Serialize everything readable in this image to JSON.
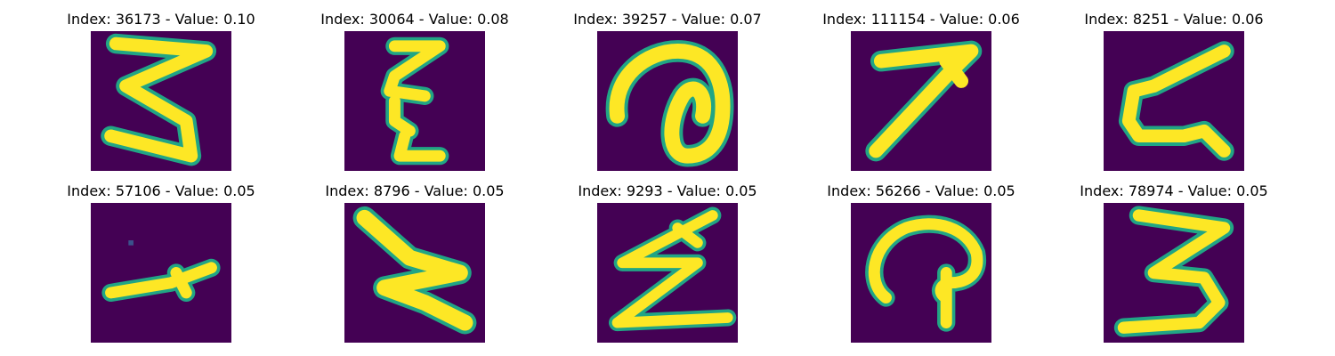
{
  "figure": {
    "panels": [
      {
        "title": "Index: 36173 - Value: 0.10",
        "glyph": "digit-3-zigzag"
      },
      {
        "title": "Index: 30064 - Value: 0.08",
        "glyph": "digit-3-narrow"
      },
      {
        "title": "Index: 39257 - Value: 0.07",
        "glyph": "loop-curl"
      },
      {
        "title": "Index: 111154 - Value: 0.06",
        "glyph": "digit-7"
      },
      {
        "title": "Index: 8251 - Value: 0.06",
        "glyph": "z-curve"
      },
      {
        "title": "Index: 57106 - Value: 0.05",
        "glyph": "arrow-stroke"
      },
      {
        "title": "Index: 8796 - Value: 0.05",
        "glyph": "z-bold"
      },
      {
        "title": "Index: 9293 - Value: 0.05",
        "glyph": "z-zigzag"
      },
      {
        "title": "Index: 56266 - Value: 0.05",
        "glyph": "loop-hook"
      },
      {
        "title": "Index: 78974 - Value: 0.05",
        "glyph": "digit-3"
      }
    ],
    "colors": {
      "background": "#440154",
      "stroke": "#fde725",
      "edge": "#21a585"
    }
  }
}
